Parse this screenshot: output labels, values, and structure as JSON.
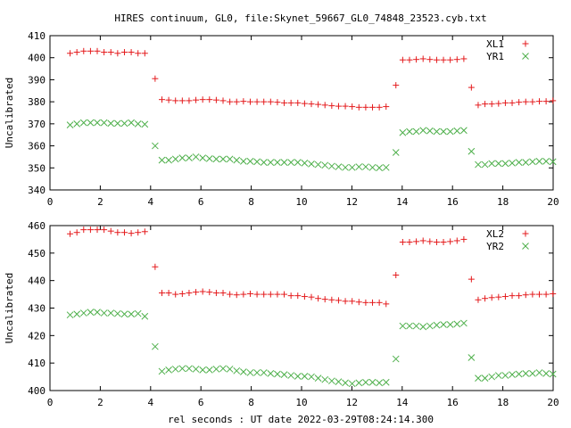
{
  "title": "HIRES continuum, GL0, file:Skynet_59667_GL0_74848_23523.cyb.txt",
  "xlabel": "rel seconds : UT date 2022-03-29T08:24:14.300",
  "chart_data": [
    {
      "type": "scatter",
      "ylabel": "Uncalibrated",
      "xlim": [
        0,
        20
      ],
      "ylim": [
        340,
        410
      ],
      "xticks": [
        0,
        2,
        4,
        6,
        8,
        10,
        12,
        14,
        16,
        18,
        20
      ],
      "yticks": [
        340,
        350,
        360,
        370,
        380,
        390,
        400,
        410
      ],
      "grid": false,
      "legend_position": "top-right",
      "series": [
        {
          "name": "XL1",
          "color": "#e41a1c",
          "marker": "plus",
          "x": [
            0.8,
            1.07,
            1.34,
            1.61,
            1.88,
            2.15,
            2.42,
            2.69,
            2.96,
            3.23,
            3.5,
            3.77,
            4.18,
            4.45,
            4.72,
            4.99,
            5.26,
            5.53,
            5.8,
            6.07,
            6.34,
            6.61,
            6.88,
            7.15,
            7.42,
            7.69,
            7.96,
            8.23,
            8.5,
            8.77,
            9.04,
            9.31,
            9.58,
            9.85,
            10.12,
            10.39,
            10.66,
            10.93,
            11.2,
            11.47,
            11.74,
            12.01,
            12.28,
            12.55,
            12.82,
            13.09,
            13.36,
            13.75,
            14.02,
            14.29,
            14.56,
            14.83,
            15.1,
            15.37,
            15.64,
            15.91,
            16.18,
            16.45,
            16.75,
            17.02,
            17.29,
            17.56,
            17.83,
            18.1,
            18.37,
            18.64,
            18.91,
            19.18,
            19.45,
            19.72,
            19.99
          ],
          "y": [
            402,
            402.5,
            403,
            403,
            403,
            402.5,
            402.5,
            402,
            402.5,
            402.5,
            402,
            402,
            390.5,
            381,
            380.8,
            380.5,
            380.5,
            380.5,
            380.8,
            381,
            381,
            380.8,
            380.5,
            380,
            380,
            380.2,
            380,
            380,
            380,
            380,
            379.8,
            379.5,
            379.5,
            379.5,
            379.2,
            379,
            378.8,
            378.5,
            378.2,
            378,
            378,
            377.8,
            377.5,
            377.5,
            377.5,
            377.5,
            377.8,
            387.5,
            399,
            399,
            399.2,
            399.5,
            399.2,
            399,
            399,
            399,
            399.2,
            399.5,
            386.5,
            378.5,
            379,
            379,
            379.2,
            379.5,
            379.5,
            379.8,
            380,
            380,
            380.2,
            380.2,
            380.5
          ]
        },
        {
          "name": "YR1",
          "color": "#4daf4a",
          "marker": "cross",
          "x": [
            0.8,
            1.07,
            1.34,
            1.61,
            1.88,
            2.15,
            2.42,
            2.69,
            2.96,
            3.23,
            3.5,
            3.77,
            4.18,
            4.45,
            4.72,
            4.99,
            5.26,
            5.53,
            5.8,
            6.07,
            6.34,
            6.61,
            6.88,
            7.15,
            7.42,
            7.69,
            7.96,
            8.23,
            8.5,
            8.77,
            9.04,
            9.31,
            9.58,
            9.85,
            10.12,
            10.39,
            10.66,
            10.93,
            11.2,
            11.47,
            11.74,
            12.01,
            12.28,
            12.55,
            12.82,
            13.09,
            13.36,
            13.75,
            14.02,
            14.29,
            14.56,
            14.83,
            15.1,
            15.37,
            15.64,
            15.91,
            16.18,
            16.45,
            16.75,
            17.02,
            17.29,
            17.56,
            17.83,
            18.1,
            18.37,
            18.64,
            18.91,
            19.18,
            19.45,
            19.72,
            19.99
          ],
          "y": [
            369.5,
            370,
            370.5,
            370.5,
            370.5,
            370.5,
            370.2,
            370.2,
            370.2,
            370.5,
            370,
            369.8,
            360,
            353.5,
            353.5,
            354,
            354.5,
            354.5,
            355,
            354.5,
            354.2,
            354,
            354,
            354,
            353.5,
            353,
            353,
            352.8,
            352.5,
            352.5,
            352.5,
            352.5,
            352.5,
            352.5,
            352.2,
            351.8,
            351.5,
            351.2,
            350.8,
            350.5,
            350.2,
            350.2,
            350.5,
            350.5,
            350.2,
            350,
            350.2,
            357,
            366,
            366.5,
            366.5,
            367,
            366.8,
            366.5,
            366.5,
            366.5,
            366.8,
            367,
            357.5,
            351.5,
            351.5,
            352,
            352,
            352,
            352.2,
            352.5,
            352.5,
            352.8,
            353,
            353,
            352.8
          ]
        }
      ]
    },
    {
      "type": "scatter",
      "ylabel": "Uncalibrated",
      "xlim": [
        0,
        20
      ],
      "ylim": [
        400,
        460
      ],
      "xticks": [
        0,
        2,
        4,
        6,
        8,
        10,
        12,
        14,
        16,
        18,
        20
      ],
      "yticks": [
        400,
        410,
        420,
        430,
        440,
        450,
        460
      ],
      "grid": false,
      "legend_position": "top-right",
      "series": [
        {
          "name": "XL2",
          "color": "#e41a1c",
          "marker": "plus",
          "x": [
            0.8,
            1.07,
            1.34,
            1.61,
            1.88,
            2.15,
            2.42,
            2.69,
            2.96,
            3.23,
            3.5,
            3.77,
            4.18,
            4.45,
            4.72,
            4.99,
            5.26,
            5.53,
            5.8,
            6.07,
            6.34,
            6.61,
            6.88,
            7.15,
            7.42,
            7.69,
            7.96,
            8.23,
            8.5,
            8.77,
            9.04,
            9.31,
            9.58,
            9.85,
            10.12,
            10.39,
            10.66,
            10.93,
            11.2,
            11.47,
            11.74,
            12.01,
            12.28,
            12.55,
            12.82,
            13.09,
            13.36,
            13.75,
            14.02,
            14.29,
            14.56,
            14.83,
            15.1,
            15.37,
            15.64,
            15.91,
            16.18,
            16.45,
            16.75,
            17.02,
            17.29,
            17.56,
            17.83,
            18.1,
            18.37,
            18.64,
            18.91,
            19.18,
            19.45,
            19.72,
            19.99
          ],
          "y": [
            457,
            457.5,
            458.5,
            458.5,
            458.5,
            458.5,
            458,
            457.5,
            457.5,
            457.2,
            457.5,
            457.8,
            445,
            435.5,
            435.5,
            435,
            435.2,
            435.5,
            435.8,
            436,
            435.8,
            435.5,
            435.5,
            435,
            434.8,
            435,
            435.2,
            435,
            435,
            435,
            435,
            435,
            434.5,
            434.5,
            434.2,
            434,
            433.5,
            433.2,
            433,
            432.8,
            432.5,
            432.5,
            432.2,
            432,
            432,
            432,
            431.5,
            442,
            454,
            454,
            454.2,
            454.5,
            454.2,
            454,
            454,
            454.2,
            454.5,
            455,
            440.5,
            433,
            433.5,
            433.8,
            434,
            434.2,
            434.5,
            434.5,
            434.8,
            435,
            435,
            435,
            435.2
          ]
        },
        {
          "name": "YR2",
          "color": "#4daf4a",
          "marker": "cross",
          "x": [
            0.8,
            1.07,
            1.34,
            1.61,
            1.88,
            2.15,
            2.42,
            2.69,
            2.96,
            3.23,
            3.5,
            3.77,
            4.18,
            4.45,
            4.72,
            4.99,
            5.26,
            5.53,
            5.8,
            6.07,
            6.34,
            6.61,
            6.88,
            7.15,
            7.42,
            7.69,
            7.96,
            8.23,
            8.5,
            8.77,
            9.04,
            9.31,
            9.58,
            9.85,
            10.12,
            10.39,
            10.66,
            10.93,
            11.2,
            11.47,
            11.74,
            12.01,
            12.28,
            12.55,
            12.82,
            13.09,
            13.36,
            13.75,
            14.02,
            14.29,
            14.56,
            14.83,
            15.1,
            15.37,
            15.64,
            15.91,
            16.18,
            16.45,
            16.75,
            17.02,
            17.29,
            17.56,
            17.83,
            18.1,
            18.37,
            18.64,
            18.91,
            19.18,
            19.45,
            19.72,
            19.99
          ],
          "y": [
            427.5,
            427.8,
            428.2,
            428.5,
            428.5,
            428.2,
            428.2,
            428,
            427.8,
            427.8,
            428,
            427,
            416,
            407,
            407.5,
            407.8,
            408,
            408,
            407.8,
            407.5,
            407.5,
            407.8,
            408,
            407.8,
            407.2,
            406.8,
            406.5,
            406.5,
            406.5,
            406.2,
            406,
            405.8,
            405.5,
            405.2,
            405.2,
            405,
            404.5,
            404,
            403.5,
            403.2,
            402.8,
            402.5,
            402.8,
            403,
            403,
            402.8,
            403,
            411.5,
            423.5,
            423.5,
            423.5,
            423.2,
            423.5,
            423.8,
            424,
            424,
            424.2,
            424.5,
            412,
            404.5,
            404.5,
            405,
            405.5,
            405.5,
            405.8,
            406,
            406.2,
            406.2,
            406.5,
            406.2,
            406
          ]
        }
      ]
    }
  ]
}
